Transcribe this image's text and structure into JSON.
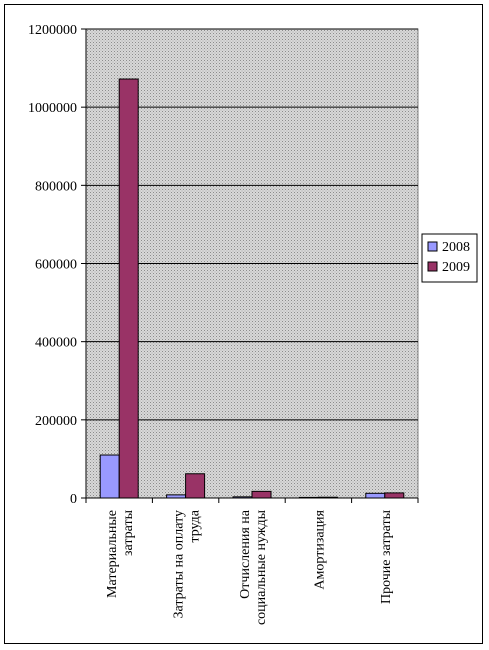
{
  "chart_data": {
    "type": "bar",
    "title": "",
    "xlabel": "",
    "ylabel": "",
    "ylim": [
      0,
      1200000
    ],
    "yticks": [
      0,
      200000,
      400000,
      600000,
      800000,
      1000000,
      1200000
    ],
    "grid": true,
    "legend_position": "right",
    "categories": [
      [
        "Материальные",
        "затраты"
      ],
      [
        "Затраты на оплату",
        "труда"
      ],
      [
        "Отчисления на",
        "социальные нужды"
      ],
      [
        "Амортизация"
      ],
      [
        "Прочие затраты"
      ]
    ],
    "series": [
      {
        "name": "2008",
        "color": "#9999ff",
        "values": [
          110000,
          8000,
          3000,
          1500,
          12000
        ]
      },
      {
        "name": "2009",
        "color": "#993366",
        "values": [
          1072000,
          62000,
          17000,
          2000,
          13000
        ]
      }
    ],
    "plot_background": "#c0c0c0"
  }
}
